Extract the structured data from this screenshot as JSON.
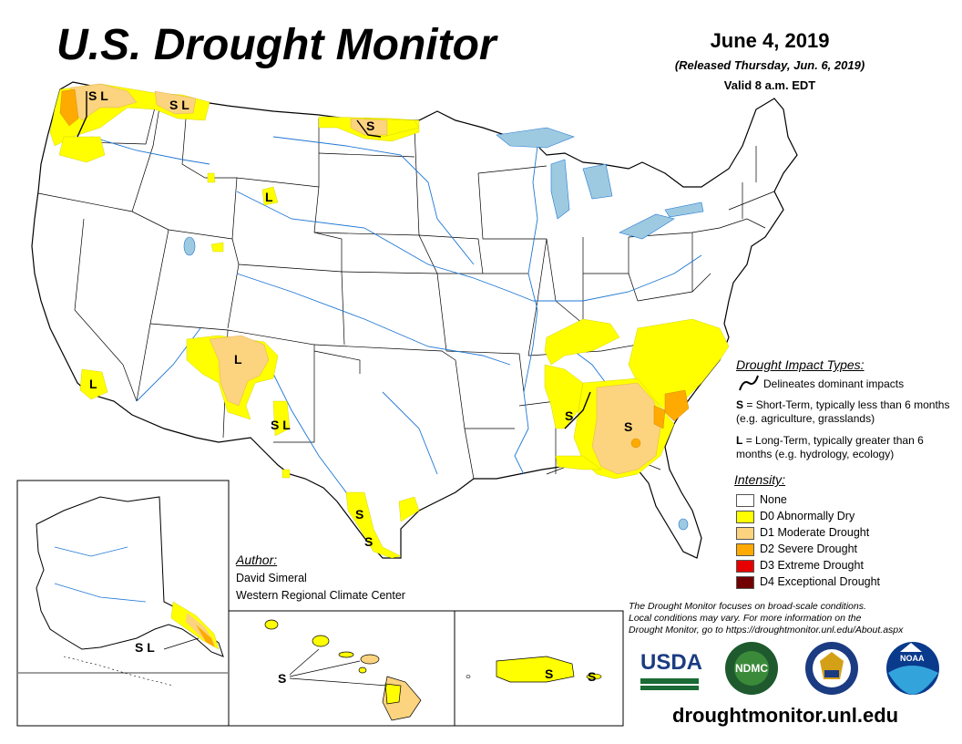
{
  "header": {
    "title": "U.S. Drought Monitor",
    "date": "June 4, 2019",
    "released": "(Released Thursday, Jun. 6, 2019)",
    "valid": "Valid 8 a.m. EDT"
  },
  "map_labels": {
    "wa": "S L",
    "mt": "S L",
    "nd": "S",
    "wy": "L",
    "az": "L",
    "nm": "S L",
    "ca": "L",
    "ms": "S",
    "ga": "S",
    "tx1": "S",
    "tx2": "S",
    "ak": "S L",
    "hi": "S",
    "pr1": "S",
    "pr2": "S"
  },
  "legend": {
    "impacts_title": "Drought Impact Types:",
    "delineates": "Delineates dominant impacts",
    "short_term_key": "S",
    "short_term": "= Short-Term, typically less than 6 months (e.g. agriculture, grasslands)",
    "long_term_key": "L",
    "long_term": "= Long-Term, typically greater than 6 months (e.g. hydrology, ecology)",
    "intensity_title": "Intensity:",
    "intensity": [
      {
        "label": "None",
        "color": "#ffffff"
      },
      {
        "label": "D0 Abnormally Dry",
        "color": "#ffff00"
      },
      {
        "label": "D1 Moderate Drought",
        "color": "#fcd37f"
      },
      {
        "label": "D2 Severe Drought",
        "color": "#ffaa00"
      },
      {
        "label": "D3 Extreme Drought",
        "color": "#e60000"
      },
      {
        "label": "D4 Exceptional Drought",
        "color": "#730000"
      }
    ]
  },
  "author": {
    "label": "Author:",
    "name": "David Simeral",
    "org": "Western Regional Climate Center"
  },
  "note": {
    "line1": "The Drought Monitor focuses on broad-scale conditions.",
    "line2": "Local conditions may vary. For more information on the",
    "line3": "Drought Monitor, go to https://droughtmonitor.unl.edu/About.aspx"
  },
  "logos": {
    "usda": "USDA",
    "ndmc": "NDMC",
    "noaa": "NOAA"
  },
  "url": "droughtmonitor.unl.edu",
  "colors": {
    "river": "#1f77d4",
    "water": "#9ecae1",
    "d0": "#ffff00",
    "d1": "#fcd37f",
    "d2": "#ffaa00",
    "d3": "#e60000",
    "d4": "#730000"
  }
}
